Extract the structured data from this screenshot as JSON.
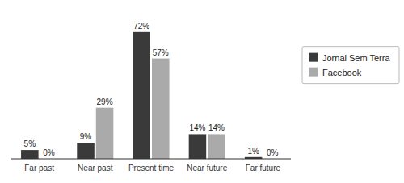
{
  "chart_data": {
    "type": "bar",
    "categories": [
      "Far past",
      "Near past",
      "Present time",
      "Near future",
      "Far future"
    ],
    "series": [
      {
        "name": "Jornal Sem Terra",
        "color": "#3a3a3a",
        "values": [
          5,
          9,
          72,
          14,
          1
        ],
        "value_labels": [
          "5%",
          "9%",
          "72%",
          "14%",
          "1%"
        ]
      },
      {
        "name": "Facebook",
        "color": "#aaaaaa",
        "values": [
          0,
          29,
          57,
          14,
          0
        ],
        "value_labels": [
          "0%",
          "29%",
          "57%",
          "14%",
          "0%"
        ]
      }
    ],
    "ylim": [
      0,
      82
    ],
    "data_labels": true,
    "tick_labels": "x",
    "grid": false,
    "legend": "right"
  }
}
